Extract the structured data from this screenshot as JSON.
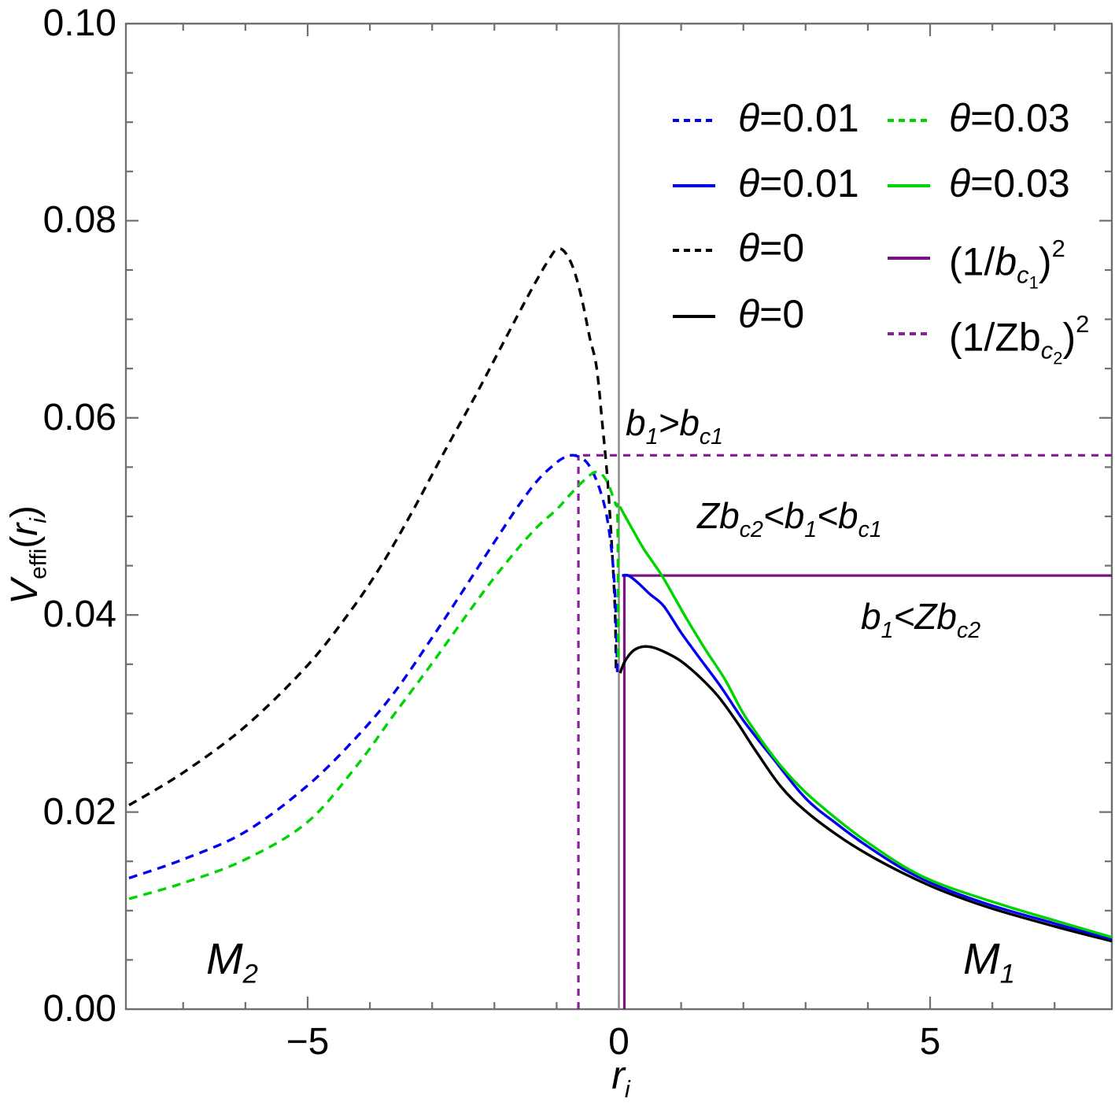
{
  "colors": {
    "blue": "#0000ee",
    "green": "#00d400",
    "black": "#000000",
    "purple": "#7b1086",
    "purple2": "#8b1f9b",
    "gray": "#8a8a8a",
    "frame": "#6f6f6f"
  },
  "axes": {
    "ylabel_segments": [
      {
        "t": "V",
        "it": 1
      },
      {
        "t": "effi",
        "vs": "sub"
      },
      {
        "t": "("
      },
      {
        "t": "r",
        "it": 1
      },
      {
        "t": "i",
        "it": 1,
        "vs": "sub"
      },
      {
        "t": ")"
      }
    ],
    "xlabel_segments": [
      {
        "t": "r",
        "it": 1
      },
      {
        "t": "i",
        "it": 1,
        "vs": "sub"
      }
    ],
    "x_ticks": [
      {
        "x": -5,
        "label": "−5"
      },
      {
        "x": 0,
        "label": "0"
      },
      {
        "x": 5,
        "label": "5"
      }
    ],
    "x_minor_step": 1,
    "y_ticks": [
      {
        "v": 0,
        "label": "0.00"
      },
      {
        "v": 0.02,
        "label": "0.02"
      },
      {
        "v": 0.04,
        "label": "0.04"
      },
      {
        "v": 0.06,
        "label": "0.06"
      },
      {
        "v": 0.08,
        "label": "0.08"
      },
      {
        "v": 0.1,
        "label": "0.10"
      }
    ],
    "y_minor_step": 0.005
  },
  "legend": {
    "col1": [
      {
        "label": "θ=0.01",
        "color": "blue",
        "dashed": true,
        "segments": [
          {
            "t": "θ",
            "it": 1
          },
          {
            "t": "=0.01"
          }
        ]
      },
      {
        "label": "θ=0.01",
        "color": "blue",
        "dashed": false,
        "segments": [
          {
            "t": "θ",
            "it": 1
          },
          {
            "t": "=0.01"
          }
        ]
      },
      {
        "label": "θ=0",
        "color": "black",
        "dashed": true,
        "segments": [
          {
            "t": "θ",
            "it": 1
          },
          {
            "t": "=0"
          }
        ]
      },
      {
        "label": "θ=0",
        "color": "black",
        "dashed": false,
        "segments": [
          {
            "t": "θ",
            "it": 1
          },
          {
            "t": "=0"
          }
        ]
      }
    ],
    "col2": [
      {
        "label": "θ=0.03",
        "color": "green",
        "dashed": true,
        "segments": [
          {
            "t": "θ",
            "it": 1
          },
          {
            "t": "=0.03"
          }
        ]
      },
      {
        "label": "θ=0.03",
        "color": "green",
        "dashed": false,
        "segments": [
          {
            "t": "θ",
            "it": 1
          },
          {
            "t": "=0.03"
          }
        ]
      },
      {
        "label": "(1/bc1)2",
        "color": "purple",
        "dashed": false,
        "segments": [
          {
            "t": "(1/"
          },
          {
            "t": "b",
            "it": 1
          },
          {
            "t": "c",
            "it": 1,
            "vs": "sub"
          },
          {
            "t": "1",
            "vs": "ssub"
          },
          {
            "t": ")"
          },
          {
            "t": "2",
            "vs": "sup"
          }
        ]
      },
      {
        "label": "(1/Zbc2)2",
        "color": "purple2",
        "dashed": true,
        "segments": [
          {
            "t": "(1/Zb"
          },
          {
            "t": "c",
            "it": 1,
            "vs": "sub"
          },
          {
            "t": "2",
            "vs": "ssub"
          },
          {
            "t": ")"
          },
          {
            "t": "2",
            "vs": "sup"
          }
        ]
      }
    ]
  },
  "annotations": {
    "b1_gt_bc1": {
      "label": "b1>bc1",
      "segments": [
        {
          "t": "b",
          "it": 1
        },
        {
          "t": "1",
          "it": 1,
          "vs": "sub"
        },
        {
          "t": ">",
          "it": 1
        },
        {
          "t": "b",
          "it": 1
        },
        {
          "t": "c1",
          "it": 1,
          "vs": "sub"
        }
      ]
    },
    "zbc2_range": {
      "label": "Zbc2<b1<bc1",
      "segments": [
        {
          "t": "Zb",
          "it": 1
        },
        {
          "t": "c2",
          "it": 1,
          "vs": "sub"
        },
        {
          "t": "<",
          "it": 1
        },
        {
          "t": "b",
          "it": 1
        },
        {
          "t": "1",
          "it": 1,
          "vs": "sub"
        },
        {
          "t": "<",
          "it": 1
        },
        {
          "t": "b",
          "it": 1
        },
        {
          "t": "c1",
          "it": 1,
          "vs": "sub"
        }
      ]
    },
    "b1_lt_zbc2": {
      "label": "b1<Zbc2",
      "segments": [
        {
          "t": "b",
          "it": 1
        },
        {
          "t": "1",
          "it": 1,
          "vs": "sub"
        },
        {
          "t": "<",
          "it": 1
        },
        {
          "t": "Zb",
          "it": 1
        },
        {
          "t": "c2",
          "it": 1,
          "vs": "sub"
        }
      ]
    },
    "m2": {
      "label": "M2",
      "segments": [
        {
          "t": "M",
          "it": 1
        },
        {
          "t": "2",
          "it": 1,
          "vs": "sub"
        }
      ]
    },
    "m1": {
      "label": "M1",
      "segments": [
        {
          "t": "M",
          "it": 1
        },
        {
          "t": "1",
          "it": 1,
          "vs": "sub"
        }
      ]
    }
  },
  "chart_data": {
    "type": "line",
    "title": "",
    "xlabel": "r_i",
    "ylabel": "V_effi(r_i)",
    "xlim": [
      -7.92,
      7.92
    ],
    "ylim": [
      0,
      0.1
    ],
    "x_major_ticks": [
      -5,
      0,
      5
    ],
    "y_major_ticks": [
      0,
      0.02,
      0.04,
      0.06,
      0.08,
      0.1
    ],
    "grid": false,
    "legend_position": "top-right-inside",
    "series": [
      {
        "name": "θ=0 dashed (M2 side)",
        "color": "black",
        "dashed": true,
        "points": [
          [
            -7.87,
            0.0207
          ],
          [
            -7,
            0.024
          ],
          [
            -6,
            0.0287
          ],
          [
            -5,
            0.0349
          ],
          [
            -4.3,
            0.0405
          ],
          [
            -3.8,
            0.0452
          ],
          [
            -3.3,
            0.0507
          ],
          [
            -2.8,
            0.0566
          ],
          [
            -2.3,
            0.0623
          ],
          [
            -1.9,
            0.0671
          ],
          [
            -1.55,
            0.0713
          ],
          [
            -1.3,
            0.0742
          ],
          [
            -1.12,
            0.0761
          ],
          [
            -1.0,
            0.0771
          ],
          [
            -0.88,
            0.0769
          ],
          [
            -0.74,
            0.0753
          ],
          [
            -0.6,
            0.0722
          ],
          [
            -0.47,
            0.0682
          ],
          [
            -0.36,
            0.0652
          ],
          [
            -0.27,
            0.0597
          ],
          [
            -0.18,
            0.0535
          ],
          [
            -0.1,
            0.0455
          ],
          [
            -0.06,
            0.04
          ],
          [
            -0.045,
            0.0345
          ]
        ]
      },
      {
        "name": "θ=0.01 dashed (M2 side)",
        "color": "blue",
        "dashed": true,
        "points": [
          [
            -7.87,
            0.0133
          ],
          [
            -7,
            0.0152
          ],
          [
            -6,
            0.018
          ],
          [
            -5,
            0.0227
          ],
          [
            -4.2,
            0.0277
          ],
          [
            -3.6,
            0.0322
          ],
          [
            -3.0,
            0.0377
          ],
          [
            -2.5,
            0.0425
          ],
          [
            -2.0,
            0.0474
          ],
          [
            -1.6,
            0.0512
          ],
          [
            -1.3,
            0.0537
          ],
          [
            -1.05,
            0.0552
          ],
          [
            -0.9,
            0.0559
          ],
          [
            -0.73,
            0.0562
          ],
          [
            -0.55,
            0.0557
          ],
          [
            -0.42,
            0.0545
          ],
          [
            -0.3,
            0.0526
          ],
          [
            -0.2,
            0.0502
          ],
          [
            -0.12,
            0.0467
          ],
          [
            -0.07,
            0.043
          ],
          [
            -0.04,
            0.0385
          ],
          [
            -0.025,
            0.0342
          ]
        ]
      },
      {
        "name": "θ=0.03 dashed (M2 side)",
        "color": "green",
        "dashed": true,
        "points": [
          [
            -7.87,
            0.0112
          ],
          [
            -7,
            0.0128
          ],
          [
            -6,
            0.0152
          ],
          [
            -5,
            0.019
          ],
          [
            -4.2,
            0.0248
          ],
          [
            -3.6,
            0.03
          ],
          [
            -3.0,
            0.0351
          ],
          [
            -2.4,
            0.0404
          ],
          [
            -2.0,
            0.0438
          ],
          [
            -1.6,
            0.0469
          ],
          [
            -1.3,
            0.049
          ],
          [
            -1.0,
            0.0507
          ],
          [
            -0.8,
            0.0521
          ],
          [
            -0.62,
            0.0533
          ],
          [
            -0.48,
            0.0541
          ],
          [
            -0.38,
            0.0545
          ],
          [
            -0.28,
            0.0543
          ],
          [
            -0.18,
            0.0534
          ],
          [
            -0.1,
            0.0521
          ],
          [
            -0.05,
            0.0512
          ],
          [
            -0.025,
            0.0508
          ],
          [
            -0.015,
            0.046
          ],
          [
            -0.01,
            0.0352
          ]
        ]
      },
      {
        "name": "θ=0 solid (M1 side)",
        "color": "black",
        "dashed": false,
        "points": [
          [
            0.02,
            0.0341
          ],
          [
            0.08,
            0.0351
          ],
          [
            0.16,
            0.0359
          ],
          [
            0.26,
            0.0365
          ],
          [
            0.4,
            0.0368
          ],
          [
            0.55,
            0.0367
          ],
          [
            0.75,
            0.0362
          ],
          [
            1.0,
            0.0353
          ],
          [
            1.3,
            0.0337
          ],
          [
            1.6,
            0.0317
          ],
          [
            1.9,
            0.0291
          ],
          [
            2.2,
            0.0262
          ],
          [
            2.6,
            0.0226
          ],
          [
            3.0,
            0.0201
          ],
          [
            3.5,
            0.0177
          ],
          [
            4.0,
            0.0157
          ],
          [
            4.6,
            0.0137
          ],
          [
            5.2,
            0.012
          ],
          [
            6.0,
            0.0102
          ],
          [
            7.0,
            0.0084
          ],
          [
            7.92,
            0.0069
          ]
        ]
      },
      {
        "name": "θ=0.01 solid (M1 side)",
        "color": "blue",
        "dashed": false,
        "points": [
          [
            0.05,
            0.044
          ],
          [
            0.15,
            0.044
          ],
          [
            0.3,
            0.0433
          ],
          [
            0.5,
            0.0421
          ],
          [
            0.72,
            0.0409
          ],
          [
            1.0,
            0.0382
          ],
          [
            1.3,
            0.0356
          ],
          [
            1.64,
            0.0327
          ],
          [
            2.0,
            0.0293
          ],
          [
            2.47,
            0.0255
          ],
          [
            3.0,
            0.0214
          ],
          [
            3.5,
            0.0188
          ],
          [
            4.0,
            0.0165
          ],
          [
            4.6,
            0.0141
          ],
          [
            5.2,
            0.0123
          ],
          [
            6.0,
            0.0105
          ],
          [
            7.0,
            0.0087
          ],
          [
            7.92,
            0.0071
          ]
        ]
      },
      {
        "name": "θ=0.03 solid (M1 side)",
        "color": "green",
        "dashed": false,
        "points": [
          [
            0.015,
            0.051
          ],
          [
            0.2,
            0.0489
          ],
          [
            0.4,
            0.0467
          ],
          [
            0.68,
            0.0441
          ],
          [
            0.9,
            0.0417
          ],
          [
            1.1,
            0.0395
          ],
          [
            1.4,
            0.0364
          ],
          [
            1.7,
            0.0335
          ],
          [
            2.0,
            0.03
          ],
          [
            2.3,
            0.0272
          ],
          [
            2.6,
            0.0247
          ],
          [
            3.0,
            0.022
          ],
          [
            3.5,
            0.0193
          ],
          [
            4.0,
            0.0169
          ],
          [
            4.6,
            0.0144
          ],
          [
            5.2,
            0.0126
          ],
          [
            6.2,
            0.0105
          ],
          [
            7.0,
            0.009
          ],
          [
            7.92,
            0.0073
          ]
        ]
      }
    ],
    "reference_lines": [
      {
        "name": "zero-radius vertical",
        "color": "gray",
        "dashed": false,
        "type": "v",
        "x": 0,
        "y1": 0,
        "y2": 0.1
      },
      {
        "name": "(1/Zbc2)^2 level",
        "color": "purple2",
        "dashed": true,
        "type": "h",
        "y": 0.0562,
        "x1": -0.79,
        "x2": 7.92
      },
      {
        "name": "Zbc2 peak marker",
        "color": "purple2",
        "dashed": true,
        "type": "v",
        "x": -0.65,
        "y1": 0,
        "y2": 0.0562
      },
      {
        "name": "(1/bc1)^2 level",
        "color": "purple",
        "dashed": false,
        "type": "h",
        "y": 0.044,
        "x1": 0.05,
        "x2": 7.92
      },
      {
        "name": "bc1 peak marker",
        "color": "purple",
        "dashed": false,
        "type": "v",
        "x": 0.088,
        "y1": 0,
        "y2": 0.044
      }
    ]
  }
}
